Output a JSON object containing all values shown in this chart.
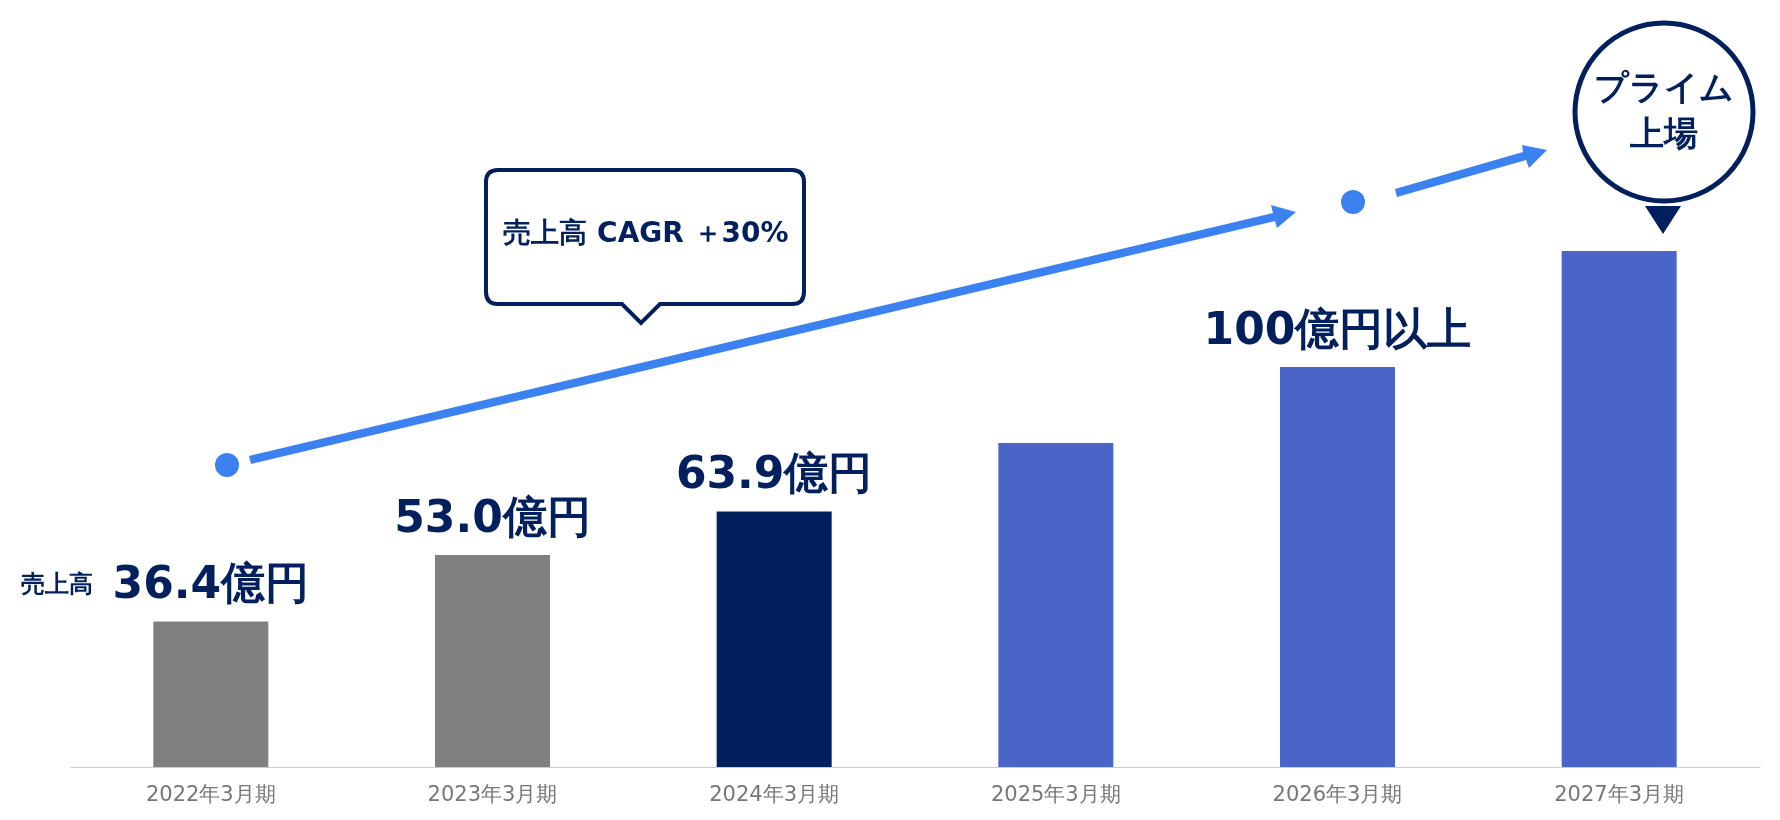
{
  "chart_data": {
    "type": "bar",
    "categories": [
      "2022年3月期",
      "2023年3月期",
      "2024年3月期",
      "2025年3月期",
      "2026年3月期",
      "2027年3月期"
    ],
    "values": [
      36.4,
      53.0,
      63.9,
      81,
      100,
      129
    ],
    "colors": [
      "#808080",
      "#808080",
      "#03205e",
      "#4a64c8",
      "#4a64c8",
      "#4a64c8"
    ],
    "value_labels": [
      "36.4億円",
      "53.0億円",
      "63.9億円",
      null,
      "100億円以上",
      null
    ],
    "annotations": [
      "売上高",
      "売上高 CAGR ＋30%",
      "プライム上場"
    ]
  }
}
